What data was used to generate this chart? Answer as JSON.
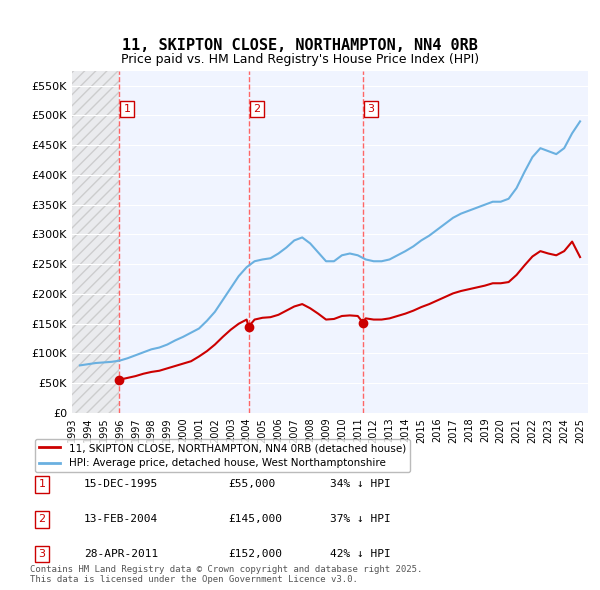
{
  "title_line1": "11, SKIPTON CLOSE, NORTHAMPTON, NN4 0RB",
  "title_line2": "Price paid vs. HM Land Registry's House Price Index (HPI)",
  "xlabel": "",
  "ylabel": "",
  "ylim": [
    0,
    575000
  ],
  "yticks": [
    0,
    50000,
    100000,
    150000,
    200000,
    250000,
    300000,
    350000,
    400000,
    450000,
    500000,
    550000
  ],
  "ytick_labels": [
    "£0",
    "£50K",
    "£100K",
    "£150K",
    "£200K",
    "£250K",
    "£300K",
    "£350K",
    "£400K",
    "£450K",
    "£500K",
    "£550K"
  ],
  "hpi_color": "#6ab0e0",
  "price_color": "#cc0000",
  "sale_marker_color": "#cc0000",
  "vline_color": "#ff6666",
  "annotation_box_color": "#cc0000",
  "hatch_color": "#d0d0d0",
  "background_color": "#f0f4ff",
  "grid_color": "#ffffff",
  "legend_label_red": "11, SKIPTON CLOSE, NORTHAMPTON, NN4 0RB (detached house)",
  "legend_label_blue": "HPI: Average price, detached house, West Northamptonshire",
  "footer_text": "Contains HM Land Registry data © Crown copyright and database right 2025.\nThis data is licensed under the Open Government Licence v3.0.",
  "sale_points": [
    {
      "num": 1,
      "year": 1995.96,
      "price": 55000,
      "date": "15-DEC-1995",
      "pct": "34%",
      "direction": "↓"
    },
    {
      "num": 2,
      "year": 2004.12,
      "price": 145000,
      "date": "13-FEB-2004",
      "pct": "37%",
      "direction": "↓"
    },
    {
      "num": 3,
      "year": 2011.32,
      "price": 152000,
      "date": "28-APR-2011",
      "pct": "42%",
      "direction": "↓"
    }
  ],
  "hpi_data": {
    "years": [
      1993.5,
      1994.0,
      1994.5,
      1995.0,
      1995.5,
      1996.0,
      1996.5,
      1997.0,
      1997.5,
      1998.0,
      1998.5,
      1999.0,
      1999.5,
      2000.0,
      2000.5,
      2001.0,
      2001.5,
      2002.0,
      2002.5,
      2003.0,
      2003.5,
      2004.0,
      2004.5,
      2005.0,
      2005.5,
      2006.0,
      2006.5,
      2007.0,
      2007.5,
      2008.0,
      2008.5,
      2009.0,
      2009.5,
      2010.0,
      2010.5,
      2011.0,
      2011.5,
      2012.0,
      2012.5,
      2013.0,
      2013.5,
      2014.0,
      2014.5,
      2015.0,
      2015.5,
      2016.0,
      2016.5,
      2017.0,
      2017.5,
      2018.0,
      2018.5,
      2019.0,
      2019.5,
      2020.0,
      2020.5,
      2021.0,
      2021.5,
      2022.0,
      2022.5,
      2023.0,
      2023.5,
      2024.0,
      2024.5,
      2025.0
    ],
    "values": [
      80000,
      82000,
      84000,
      85000,
      86000,
      88000,
      92000,
      97000,
      102000,
      107000,
      110000,
      115000,
      122000,
      128000,
      135000,
      142000,
      155000,
      170000,
      190000,
      210000,
      230000,
      245000,
      255000,
      258000,
      260000,
      268000,
      278000,
      290000,
      295000,
      285000,
      270000,
      255000,
      255000,
      265000,
      268000,
      265000,
      258000,
      255000,
      255000,
      258000,
      265000,
      272000,
      280000,
      290000,
      298000,
      308000,
      318000,
      328000,
      335000,
      340000,
      345000,
      350000,
      355000,
      355000,
      360000,
      378000,
      405000,
      430000,
      445000,
      440000,
      435000,
      445000,
      470000,
      490000
    ]
  },
  "price_trace_data": {
    "years": [
      1993.5,
      1994.0,
      1994.5,
      1995.0,
      1995.5,
      1995.96,
      1996.0,
      1996.5,
      1997.0,
      1997.5,
      1998.0,
      1998.5,
      1999.0,
      1999.5,
      2000.0,
      2000.5,
      2001.0,
      2001.5,
      2002.0,
      2002.5,
      2003.0,
      2003.5,
      2004.0,
      2004.12,
      2004.5,
      2005.0,
      2005.5,
      2006.0,
      2006.5,
      2007.0,
      2007.5,
      2008.0,
      2008.5,
      2009.0,
      2009.5,
      2010.0,
      2010.5,
      2011.0,
      2011.32,
      2011.5,
      2012.0,
      2012.5,
      2013.0,
      2013.5,
      2014.0,
      2014.5,
      2015.0,
      2015.5,
      2016.0,
      2016.5,
      2017.0,
      2017.5,
      2018.0,
      2018.5,
      2019.0,
      2019.5,
      2020.0,
      2020.5,
      2021.0,
      2021.5,
      2022.0,
      2022.5,
      2023.0,
      2023.5,
      2024.0,
      2024.5,
      2025.0
    ],
    "values": [
      null,
      null,
      null,
      null,
      null,
      55000,
      56000,
      59000,
      62000,
      66000,
      69000,
      71000,
      75000,
      79000,
      83000,
      87000,
      95000,
      104000,
      115000,
      128000,
      140000,
      150000,
      157000,
      145000,
      157000,
      160000,
      161000,
      165000,
      172000,
      179000,
      183000,
      176000,
      167000,
      157000,
      158000,
      163000,
      164000,
      163000,
      152000,
      159000,
      157000,
      157000,
      159000,
      163000,
      167000,
      172000,
      178000,
      183000,
      189000,
      195000,
      201000,
      205000,
      208000,
      211000,
      214000,
      218000,
      218000,
      220000,
      232000,
      248000,
      263000,
      272000,
      268000,
      265000,
      272000,
      288000,
      262000
    ]
  },
  "xtick_years": [
    1993,
    1994,
    1995,
    1996,
    1997,
    1998,
    1999,
    2000,
    2001,
    2002,
    2003,
    2004,
    2005,
    2006,
    2007,
    2008,
    2009,
    2010,
    2011,
    2012,
    2013,
    2014,
    2015,
    2016,
    2017,
    2018,
    2019,
    2020,
    2021,
    2022,
    2023,
    2024,
    2025
  ]
}
